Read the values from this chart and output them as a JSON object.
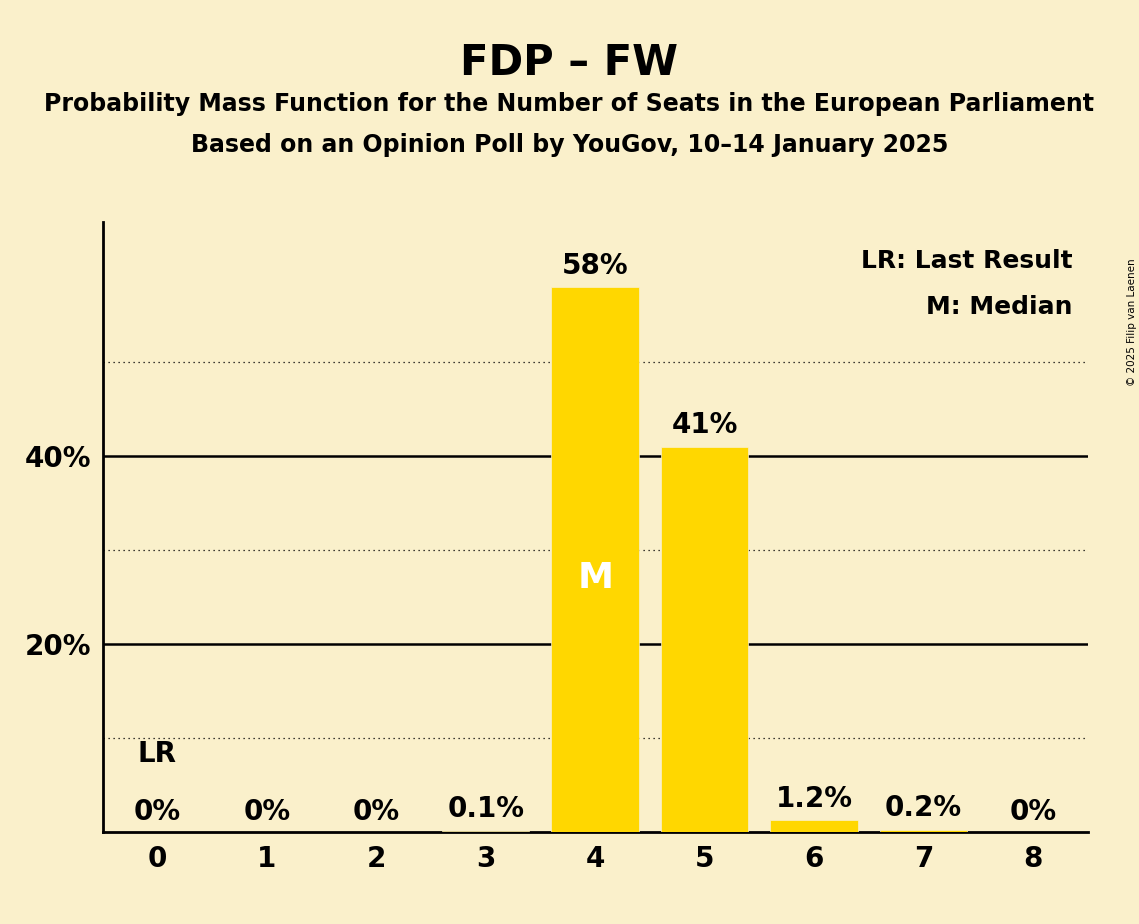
{
  "title": "FDP – FW",
  "subtitle1": "Probability Mass Function for the Number of Seats in the European Parliament",
  "subtitle2": "Based on an Opinion Poll by YouGov, 10–14 January 2025",
  "copyright": "© 2025 Filip van Laenen",
  "categories": [
    0,
    1,
    2,
    3,
    4,
    5,
    6,
    7,
    8
  ],
  "values": [
    0.0,
    0.0,
    0.0,
    0.001,
    0.58,
    0.41,
    0.012,
    0.002,
    0.0
  ],
  "labels": [
    "0%",
    "0%",
    "0%",
    "0.1%",
    "58%",
    "41%",
    "1.2%",
    "0.2%",
    "0%"
  ],
  "bar_color": "#FFD700",
  "background_color": "#FAF0CB",
  "median_seat": 4,
  "last_result_seat": 0,
  "dotted_lines": [
    0.1,
    0.3,
    0.5
  ],
  "solid_lines": [
    0.2,
    0.4
  ],
  "legend_lr": "LR: Last Result",
  "legend_m": "M: Median",
  "ylim": [
    0,
    0.65
  ]
}
